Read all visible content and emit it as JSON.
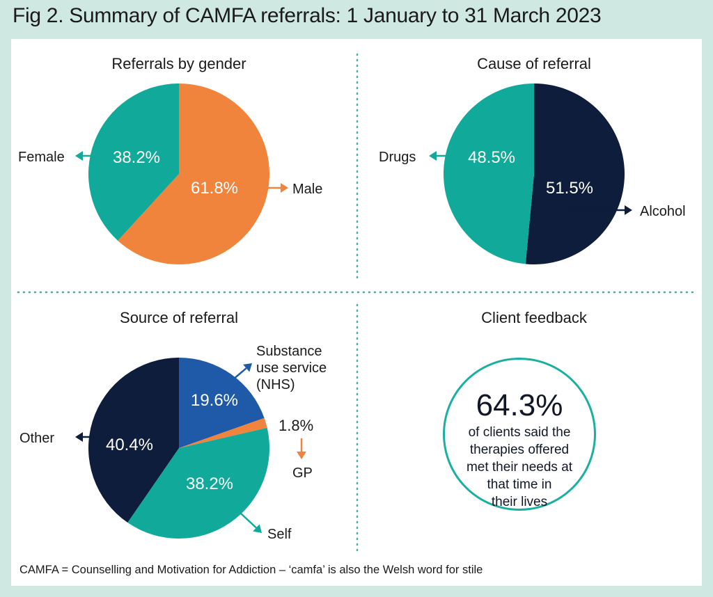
{
  "figure_title": "Fig 2. Summary of CAMFA referrals: 1 January to 31 March 2023",
  "footnote": "CAMFA = Counselling and Motivation for Addiction – ‘camfa’ is also the Welsh word for stile",
  "colors": {
    "teal": "#11a99a",
    "orange": "#f0843c",
    "navy": "#0f1d3d",
    "blue": "#1e5aa8",
    "divider": "#3bb3a6",
    "background": "#cfe8e2"
  },
  "chart_data": [
    {
      "type": "pie",
      "title": "Referrals by gender",
      "slices": [
        {
          "label": "Male",
          "value": 61.8,
          "value_label": "61.8%",
          "color": "#f0843c"
        },
        {
          "label": "Female",
          "value": 38.2,
          "value_label": "38.2%",
          "color": "#11a99a"
        }
      ]
    },
    {
      "type": "pie",
      "title": "Cause of referral",
      "slices": [
        {
          "label": "Alcohol",
          "value": 51.5,
          "value_label": "51.5%",
          "color": "#0f1d3d"
        },
        {
          "label": "Drugs",
          "value": 48.5,
          "value_label": "48.5%",
          "color": "#11a99a"
        }
      ]
    },
    {
      "type": "pie",
      "title": "Source of referral",
      "slices": [
        {
          "label": "Substance use service (NHS)",
          "label_lines": [
            "Substance",
            "use service",
            "(NHS)"
          ],
          "value": 19.6,
          "value_label": "19.6%",
          "color": "#1e5aa8"
        },
        {
          "label": "GP",
          "value": 1.8,
          "value_label": "1.8%",
          "color": "#f0843c"
        },
        {
          "label": "Self",
          "value": 38.2,
          "value_label": "38.2%",
          "color": "#11a99a"
        },
        {
          "label": "Other",
          "value": 40.4,
          "value_label": "40.4%",
          "color": "#0f1d3d"
        }
      ]
    }
  ],
  "client_feedback": {
    "title": "Client feedback",
    "percent": "64.3%",
    "lines": [
      "of clients said the",
      "therapies offered",
      "met their needs at",
      "that time in",
      "their lives"
    ]
  }
}
